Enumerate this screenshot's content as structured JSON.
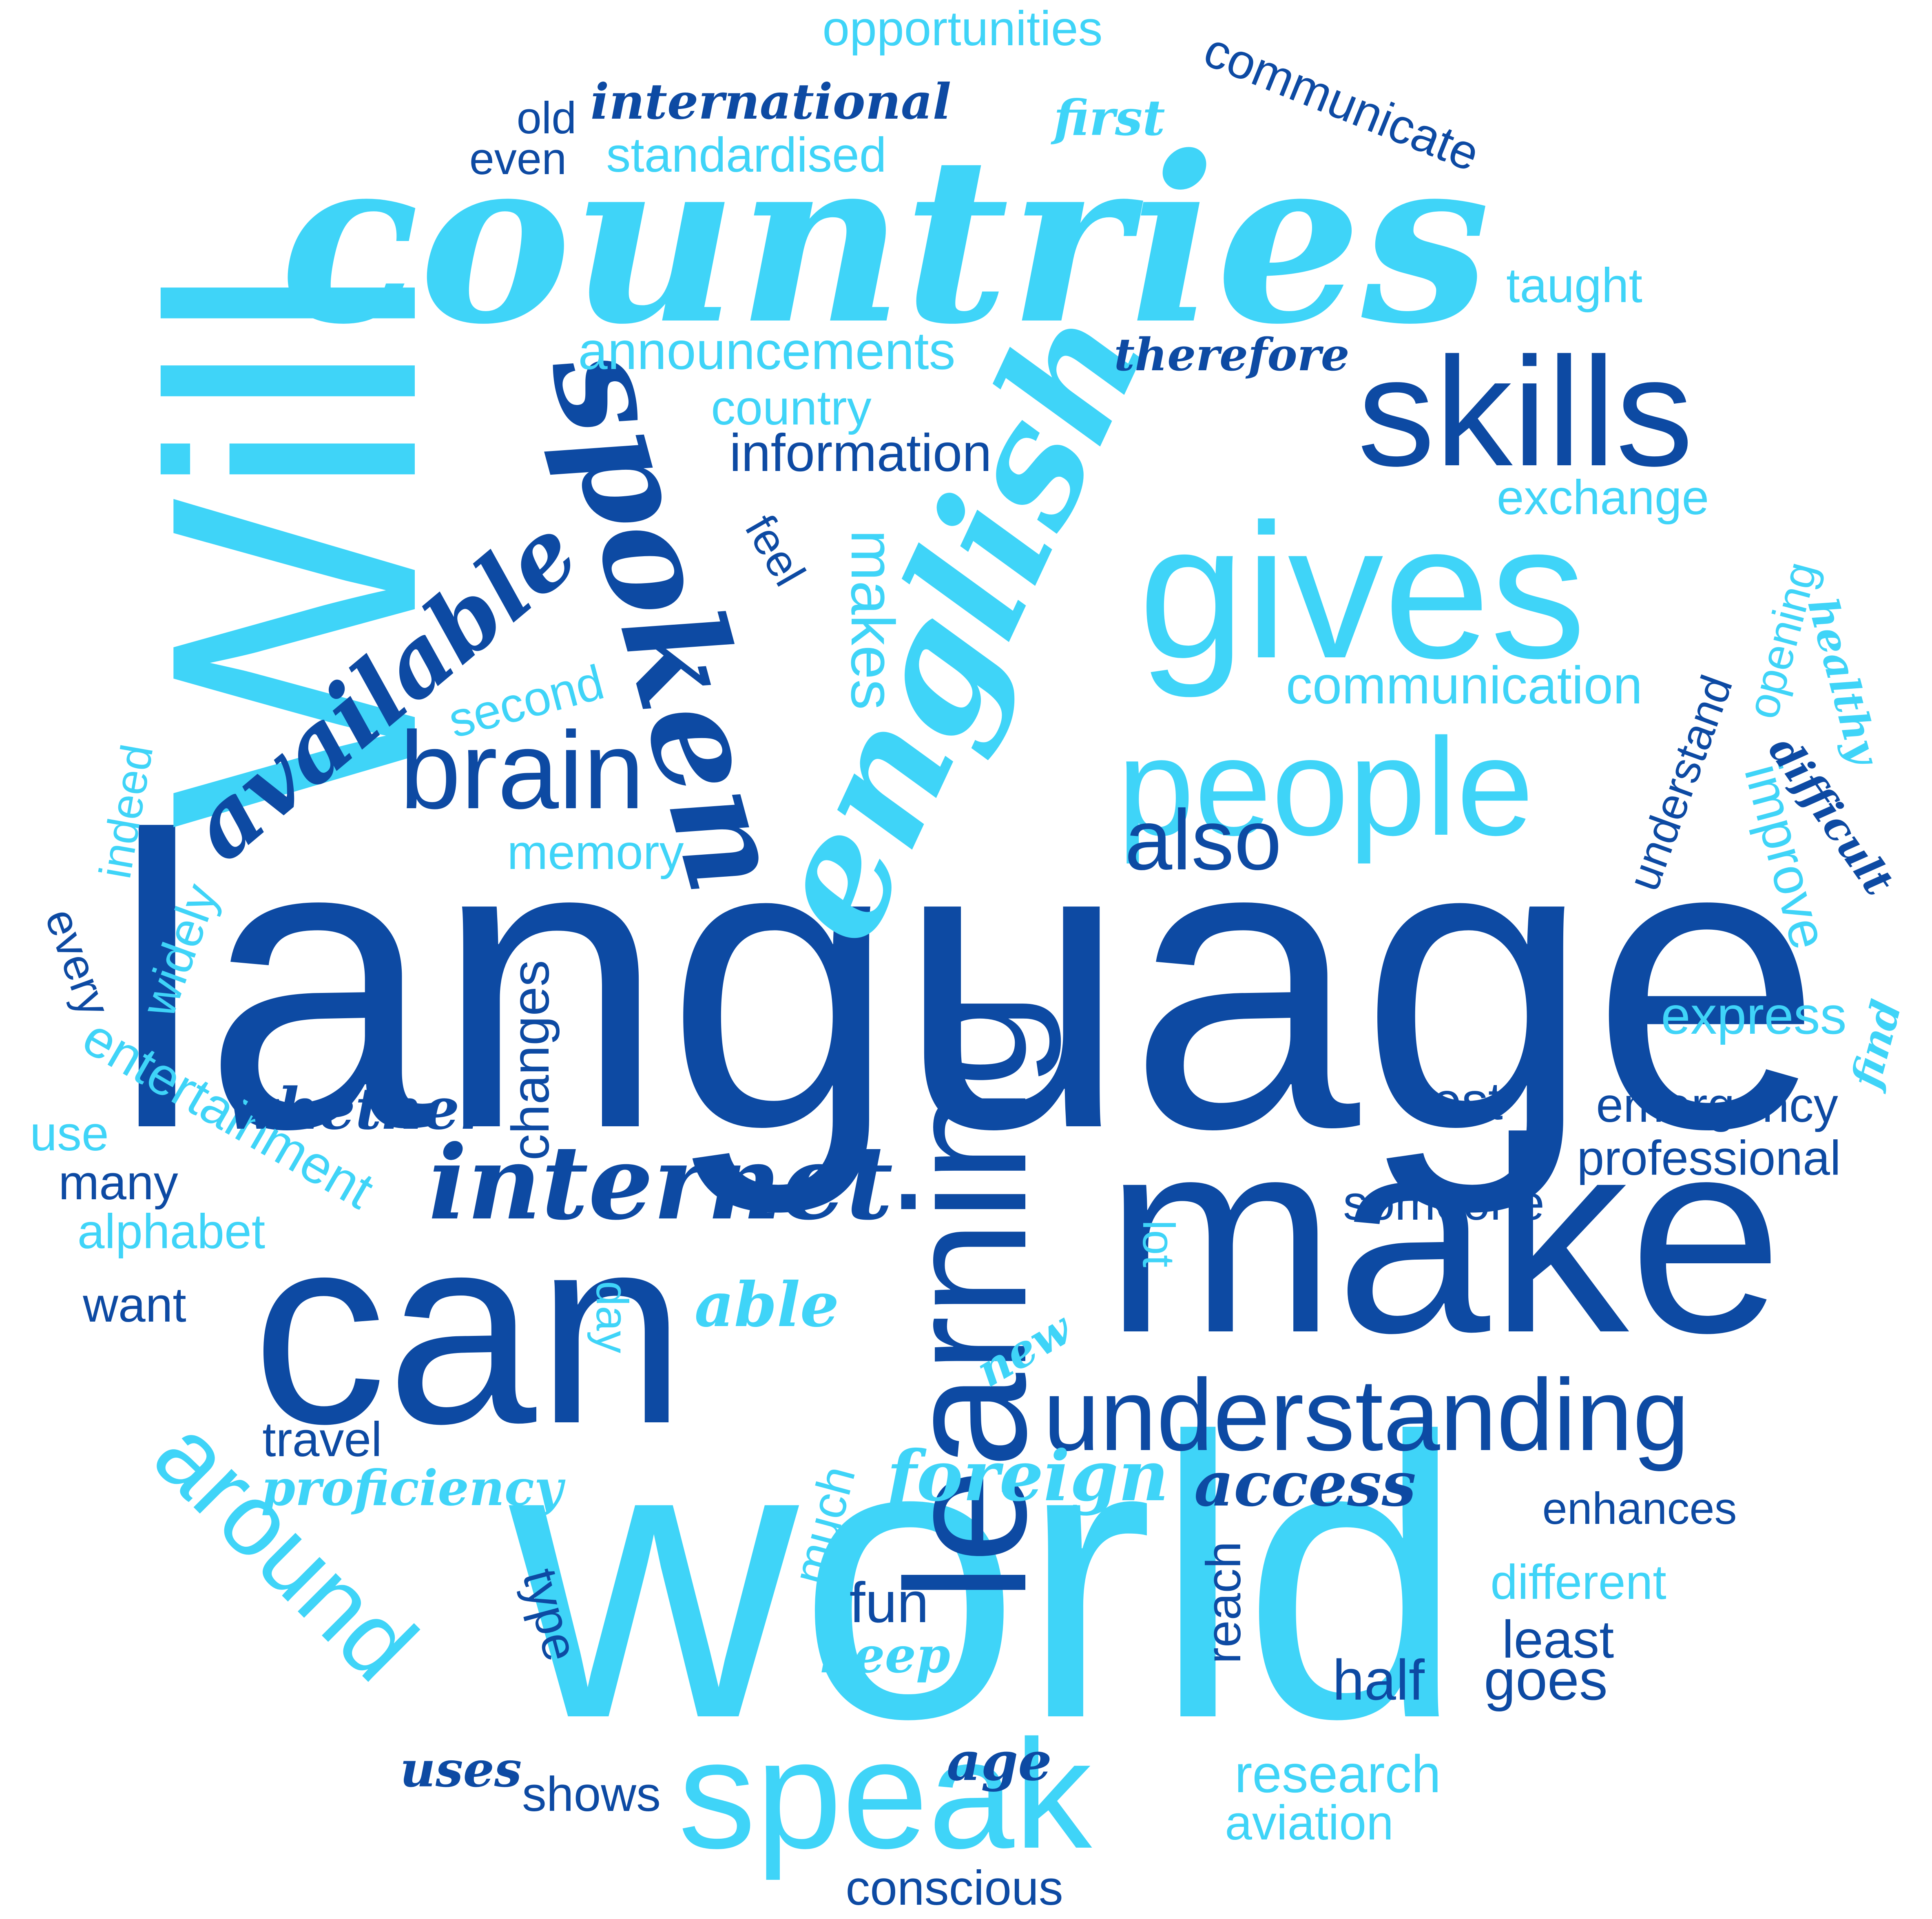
{
  "colors": {
    "dark": "#0d4aa3",
    "light": "#3fd4f8",
    "background": "#ffffff"
  },
  "words": [
    "language",
    "countries",
    "world",
    "can",
    "make",
    "Will",
    "learning",
    "english",
    "spoken",
    "gives",
    "skills",
    "people",
    "speak",
    "understanding",
    "brain",
    "available",
    "internet",
    "around",
    "also",
    "communication",
    "information",
    "announcements",
    "opportunities",
    "communicate",
    "international",
    "standardised",
    "country",
    "exchange",
    "taught",
    "memory",
    "second",
    "improve",
    "understand",
    "opening",
    "foreign",
    "access",
    "enhances",
    "different",
    "professional",
    "emergency",
    "entertainment",
    "express",
    "research",
    "aviation",
    "conscious",
    "alphabet",
    "changes",
    "whether",
    "test",
    "someone",
    "least",
    "half",
    "goes",
    "reach",
    "fun",
    "keep",
    "shows",
    "uses",
    "age",
    "proficiency",
    "able",
    "travel",
    "much",
    "type",
    "widely",
    "use",
    "many",
    "want",
    "even",
    "old",
    "first",
    "therefore",
    "makes",
    "feel",
    "indeed",
    "every",
    "healthy",
    "difficult",
    "find",
    "day",
    "lot",
    "new"
  ]
}
